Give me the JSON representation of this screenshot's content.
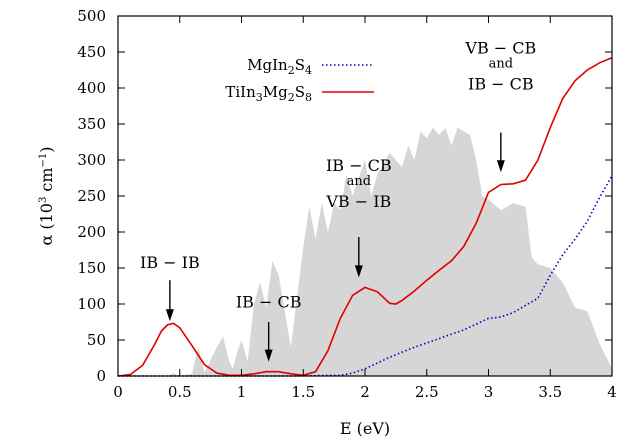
{
  "chart_data": {
    "type": "line",
    "xlabel": "E (eV)",
    "ylabel": {
      "base": "α (10",
      "exp": "3",
      "unit": " cm",
      "unit_exp": "−1",
      "close": ")"
    },
    "xlim": [
      0,
      4
    ],
    "ylim": [
      0,
      500
    ],
    "x_ticks": [
      "0",
      "0.5",
      "1",
      "1.5",
      "2",
      "2.5",
      "3",
      "3.5",
      "4"
    ],
    "y_ticks": [
      "0",
      "50",
      "100",
      "150",
      "200",
      "250",
      "300",
      "350",
      "400",
      "450",
      "500"
    ],
    "legend_position": "top-left",
    "series": [
      {
        "name_parts": [
          [
            "MgIn",
            "n"
          ],
          [
            "2",
            "s"
          ],
          [
            "S",
            "n"
          ],
          [
            "4",
            "s"
          ]
        ],
        "style": "dotted",
        "color": "#0000cc",
        "points": [
          [
            0.0,
            0
          ],
          [
            1.4,
            0
          ],
          [
            1.8,
            1
          ],
          [
            1.9,
            4
          ],
          [
            2.0,
            10
          ],
          [
            2.1,
            18
          ],
          [
            2.2,
            26
          ],
          [
            2.3,
            33
          ],
          [
            2.4,
            40
          ],
          [
            2.5,
            46
          ],
          [
            2.6,
            52
          ],
          [
            2.7,
            58
          ],
          [
            2.8,
            64
          ],
          [
            2.9,
            72
          ],
          [
            3.0,
            80
          ],
          [
            3.1,
            82
          ],
          [
            3.2,
            88
          ],
          [
            3.3,
            98
          ],
          [
            3.4,
            108
          ],
          [
            3.5,
            140
          ],
          [
            3.6,
            168
          ],
          [
            3.7,
            190
          ],
          [
            3.8,
            215
          ],
          [
            3.9,
            248
          ],
          [
            4.0,
            278
          ]
        ]
      },
      {
        "name_parts": [
          [
            "TiIn",
            "n"
          ],
          [
            "3",
            "s"
          ],
          [
            "Mg",
            "n"
          ],
          [
            "2",
            "s"
          ],
          [
            "S",
            "n"
          ],
          [
            "8",
            "s"
          ]
        ],
        "style": "solid",
        "color": "#e00000",
        "points": [
          [
            0.0,
            0
          ],
          [
            0.1,
            2
          ],
          [
            0.2,
            15
          ],
          [
            0.3,
            45
          ],
          [
            0.35,
            62
          ],
          [
            0.4,
            71
          ],
          [
            0.45,
            73
          ],
          [
            0.5,
            67
          ],
          [
            0.6,
            42
          ],
          [
            0.7,
            16
          ],
          [
            0.8,
            4
          ],
          [
            0.9,
            1
          ],
          [
            1.0,
            1
          ],
          [
            1.1,
            3
          ],
          [
            1.2,
            6
          ],
          [
            1.3,
            6
          ],
          [
            1.4,
            3
          ],
          [
            1.5,
            1
          ],
          [
            1.6,
            6
          ],
          [
            1.7,
            35
          ],
          [
            1.8,
            80
          ],
          [
            1.9,
            112
          ],
          [
            2.0,
            123
          ],
          [
            2.1,
            117
          ],
          [
            2.2,
            101
          ],
          [
            2.25,
            100
          ],
          [
            2.3,
            105
          ],
          [
            2.4,
            118
          ],
          [
            2.5,
            133
          ],
          [
            2.6,
            147
          ],
          [
            2.7,
            160
          ],
          [
            2.8,
            180
          ],
          [
            2.9,
            212
          ],
          [
            3.0,
            255
          ],
          [
            3.1,
            266
          ],
          [
            3.2,
            267
          ],
          [
            3.3,
            272
          ],
          [
            3.4,
            300
          ],
          [
            3.5,
            345
          ],
          [
            3.6,
            385
          ],
          [
            3.7,
            410
          ],
          [
            3.8,
            425
          ],
          [
            3.9,
            435
          ],
          [
            4.0,
            442
          ]
        ]
      }
    ],
    "dos_background": {
      "color": "#d6d6d6",
      "points": [
        [
          0.0,
          0
        ],
        [
          0.4,
          0
        ],
        [
          0.45,
          4
        ],
        [
          0.5,
          0
        ],
        [
          0.6,
          3
        ],
        [
          0.65,
          40
        ],
        [
          0.7,
          5
        ],
        [
          0.8,
          40
        ],
        [
          0.85,
          55
        ],
        [
          0.9,
          20
        ],
        [
          0.93,
          10
        ],
        [
          0.96,
          30
        ],
        [
          1.0,
          50
        ],
        [
          1.05,
          20
        ],
        [
          1.1,
          100
        ],
        [
          1.15,
          130
        ],
        [
          1.2,
          95
        ],
        [
          1.25,
          160
        ],
        [
          1.3,
          140
        ],
        [
          1.4,
          40
        ],
        [
          1.45,
          110
        ],
        [
          1.5,
          180
        ],
        [
          1.55,
          235
        ],
        [
          1.6,
          190
        ],
        [
          1.65,
          240
        ],
        [
          1.7,
          200
        ],
        [
          1.75,
          240
        ],
        [
          1.8,
          230
        ],
        [
          1.85,
          280
        ],
        [
          1.9,
          250
        ],
        [
          2.0,
          300
        ],
        [
          2.05,
          250
        ],
        [
          2.1,
          280
        ],
        [
          2.2,
          310
        ],
        [
          2.3,
          290
        ],
        [
          2.35,
          320
        ],
        [
          2.4,
          300
        ],
        [
          2.45,
          340
        ],
        [
          2.5,
          330
        ],
        [
          2.55,
          345
        ],
        [
          2.6,
          335
        ],
        [
          2.65,
          345
        ],
        [
          2.7,
          320
        ],
        [
          2.75,
          345
        ],
        [
          2.8,
          340
        ],
        [
          2.85,
          335
        ],
        [
          2.9,
          300
        ],
        [
          2.95,
          250
        ],
        [
          3.0,
          245
        ],
        [
          3.1,
          230
        ],
        [
          3.2,
          240
        ],
        [
          3.3,
          235
        ],
        [
          3.35,
          165
        ],
        [
          3.4,
          155
        ],
        [
          3.5,
          150
        ],
        [
          3.6,
          130
        ],
        [
          3.7,
          95
        ],
        [
          3.8,
          90
        ],
        [
          3.9,
          45
        ],
        [
          4.0,
          10
        ],
        [
          4.0,
          0
        ]
      ]
    },
    "annotations": [
      {
        "lines": [
          "IB − IB"
        ],
        "x": 0.42,
        "y_text": 150,
        "arrow_from": 133,
        "arrow_to": 76
      },
      {
        "lines": [
          "IB − CB"
        ],
        "x": 1.22,
        "y_text": 95,
        "arrow_from": 75,
        "arrow_to": 20
      },
      {
        "lines": [
          "IB − CB",
          "and",
          "VB − IB"
        ],
        "x": 1.95,
        "y_text": 285,
        "arrow_from": 193,
        "arrow_to": 137
      },
      {
        "lines": [
          "VB − CB",
          "and",
          "IB − CB"
        ],
        "x": 3.1,
        "y_text": 448,
        "arrow_from": 338,
        "arrow_to": 283
      }
    ]
  }
}
